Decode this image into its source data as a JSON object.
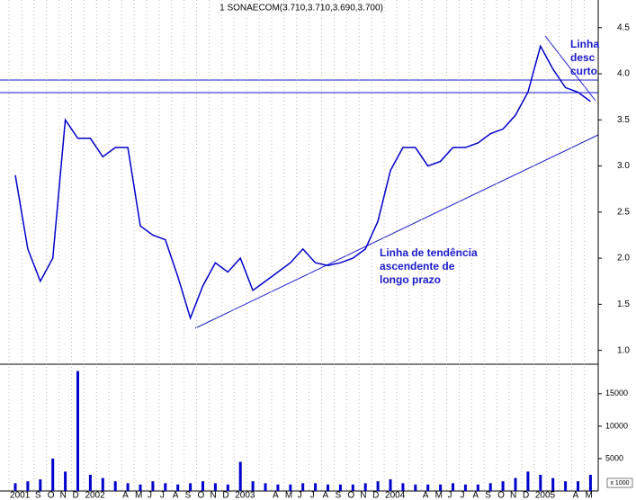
{
  "chart_data": {
    "type": "line",
    "title": "1 SONAECOM(3.710,3.710,3.690,3.700)",
    "categories": [
      "2001",
      null,
      "S",
      "O",
      "N",
      "D",
      "2002",
      null,
      null,
      "A",
      "M",
      "J",
      "J",
      "A",
      "S",
      "O",
      "N",
      "D",
      "2003",
      null,
      null,
      "A",
      "M",
      "J",
      "J",
      "A",
      "S",
      "O",
      "N",
      "D",
      "2004",
      null,
      null,
      "A",
      "M",
      "J",
      "J",
      "A",
      "S",
      "O",
      "N",
      "D",
      "2005",
      null,
      null,
      "A",
      "M"
    ],
    "series": [
      {
        "color": "#0000cc",
        "values": [
          2.9,
          2.1,
          1.75,
          2.0,
          3.5,
          3.3,
          3.3,
          3.1,
          3.2,
          3.2,
          2.35,
          2.25,
          2.2,
          1.8,
          1.35,
          1.7,
          1.95,
          1.85,
          2.0,
          1.65,
          1.75,
          1.85,
          1.95,
          2.1,
          1.95,
          1.92,
          1.95,
          2.0,
          2.1,
          2.4,
          2.95,
          3.2,
          3.2,
          3.0,
          3.05,
          3.2,
          3.2,
          3.25,
          3.35,
          3.4,
          3.55,
          3.8,
          4.3,
          4.05,
          3.85,
          3.8,
          3.7
        ]
      },
      {
        "type": "bar",
        "axis": "y2",
        "color": "#0000cc",
        "values": [
          1200,
          1500,
          1800,
          5000,
          3000,
          18500,
          2500,
          2000,
          1500,
          1200,
          1000,
          1500,
          1200,
          1000,
          1200,
          1500,
          1200,
          1000,
          4500,
          1500,
          1200,
          1000,
          1000,
          1200,
          1200,
          1000,
          1000,
          1000,
          1200,
          1500,
          1800,
          1200,
          1000,
          1000,
          1000,
          1200,
          1000,
          1000,
          1200,
          1500,
          2000,
          3000,
          2500,
          2000,
          1500,
          1500,
          2500
        ]
      }
    ],
    "ylim": [
      0.85,
      4.8
    ],
    "yticks": [
      {
        "value": 1,
        "label": "1.0"
      },
      1.5,
      {
        "value": 2,
        "label": "2.0"
      },
      2.5,
      {
        "value": 3,
        "label": "3.0"
      },
      3.5,
      {
        "value": 4,
        "label": "4.0"
      },
      4.5
    ],
    "y2lim": [
      0,
      19000
    ],
    "y2ticks": [
      5000,
      10000,
      15000
    ],
    "y2_unit_label": "x 1000",
    "grid": true,
    "annotations": [
      [
        "Linha de tendência",
        "ascendente de",
        "longo prazo"
      ],
      [
        "Linha",
        "desc",
        "curto"
      ]
    ]
  }
}
